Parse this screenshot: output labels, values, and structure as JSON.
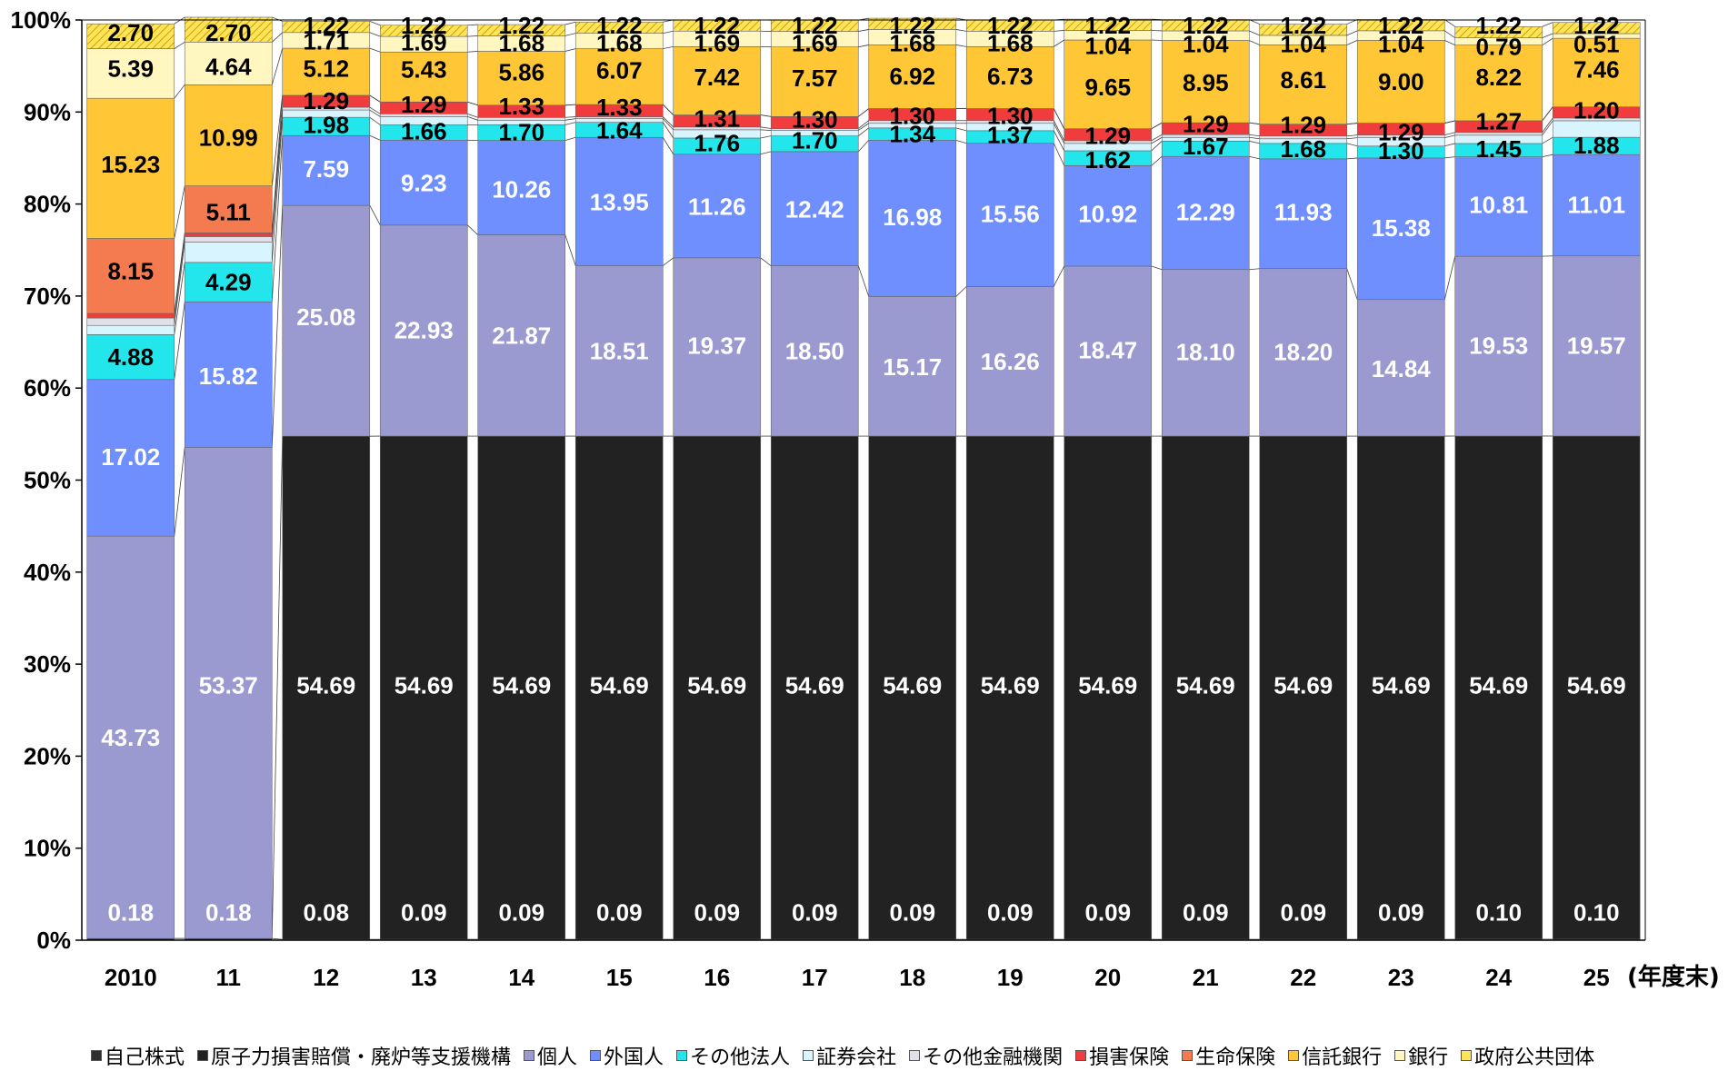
{
  "chart_data": {
    "type": "bar",
    "stacked": true,
    "ylim": [
      0,
      100
    ],
    "y_ticks": [
      "0%",
      "10%",
      "20%",
      "30%",
      "40%",
      "50%",
      "60%",
      "70%",
      "80%",
      "90%",
      "100%"
    ],
    "unit_label": "(年度末)",
    "grid": false,
    "legend_position": "bottom",
    "categories": [
      "2010",
      "11",
      "12",
      "13",
      "14",
      "15",
      "16",
      "17",
      "18",
      "19",
      "20",
      "21",
      "22",
      "23",
      "24",
      "25"
    ],
    "series": [
      {
        "name": "自己株式",
        "color": "#2e2e2e",
        "label_color": "#ffffff",
        "values": [
          0.18,
          0.18,
          0.08,
          0.09,
          0.09,
          0.09,
          0.09,
          0.09,
          0.09,
          0.09,
          0.09,
          0.09,
          0.09,
          0.09,
          0.1,
          0.1
        ],
        "labels": [
          "0.18",
          "0.18",
          "0.08",
          "0.09",
          "0.09",
          "0.09",
          "0.09",
          "0.09",
          "0.09",
          "0.09",
          "0.09",
          "0.09",
          "0.09",
          "0.09",
          "0.10",
          "0.10"
        ],
        "label_positions": [
          3,
          3,
          3,
          3,
          3,
          3,
          3,
          3,
          3,
          3,
          3,
          3,
          3,
          3,
          3,
          3
        ]
      },
      {
        "name": "原子力損害賠償・廃炉等支援機構",
        "color": "#222222",
        "label_color": "#ffffff",
        "values": [
          0,
          0,
          54.69,
          54.69,
          54.69,
          54.69,
          54.69,
          54.69,
          54.69,
          54.69,
          54.69,
          54.69,
          54.69,
          54.69,
          54.69,
          54.69
        ],
        "labels": [
          "",
          "",
          "54.69",
          "54.69",
          "54.69",
          "54.69",
          "54.69",
          "54.69",
          "54.69",
          "54.69",
          "54.69",
          "54.69",
          "54.69",
          "54.69",
          "54.69",
          "54.69"
        ],
        "label_positions": [
          null,
          null,
          27.7,
          27.7,
          27.7,
          27.7,
          27.7,
          27.7,
          27.7,
          27.7,
          27.7,
          27.7,
          27.7,
          27.7,
          27.7,
          27.7
        ]
      },
      {
        "name": "個人",
        "color": "#9a9ad0",
        "label_color": "#ffffff",
        "values": [
          43.73,
          53.37,
          25.08,
          22.93,
          21.87,
          18.51,
          19.37,
          18.5,
          15.17,
          16.26,
          18.47,
          18.1,
          18.2,
          14.84,
          19.53,
          19.57
        ],
        "labels": [
          "43.73",
          "53.37",
          "25.08",
          "22.93",
          "21.87",
          "18.51",
          "19.37",
          "18.50",
          "15.17",
          "16.26",
          "18.47",
          "18.10",
          "18.20",
          "14.84",
          "19.53",
          "19.57"
        ],
        "label_positions": [
          22,
          27.7,
          67.7,
          66.3,
          65.7,
          64,
          64.6,
          64,
          62.3,
          62.9,
          64.1,
          63.9,
          63.9,
          62.1,
          64.6,
          64.6
        ]
      },
      {
        "name": "外国人",
        "color": "#6f8fff",
        "label_color": "#ffffff",
        "values": [
          17.02,
          15.82,
          7.59,
          9.23,
          10.26,
          13.95,
          11.26,
          12.42,
          16.98,
          15.56,
          10.92,
          12.29,
          11.93,
          15.38,
          10.81,
          11.01
        ],
        "labels": [
          "17.02",
          "15.82",
          "7.59",
          "9.23",
          "10.26",
          "13.95",
          "11.26",
          "12.42",
          "16.98",
          "15.56",
          "10.92",
          "12.29",
          "11.93",
          "15.38",
          "10.81",
          "11.01"
        ],
        "label_positions": [
          52.5,
          61.3,
          83.8,
          82.3,
          81.6,
          80.2,
          79.7,
          79.4,
          78.6,
          78.9,
          78.9,
          79.1,
          79.1,
          77.4,
          79.9,
          79.9
        ]
      },
      {
        "name": "その他法人",
        "color": "#22e6ec",
        "label_color": "#000000",
        "values": [
          4.88,
          4.29,
          1.98,
          1.66,
          1.7,
          1.64,
          1.76,
          1.7,
          1.34,
          1.37,
          1.62,
          1.67,
          1.68,
          1.3,
          1.45,
          1.88
        ],
        "labels": [
          "4.88",
          "4.29",
          "1.98",
          "1.66",
          "1.70",
          "1.64",
          "1.76",
          "1.70",
          "1.34",
          "1.37",
          "1.62",
          "1.67",
          "1.68",
          "1.30",
          "1.45",
          "1.88"
        ],
        "label_positions": [
          63.4,
          71.5,
          88.6,
          87.9,
          87.8,
          88,
          86.6,
          86.9,
          87.6,
          87.5,
          84.8,
          86.3,
          86,
          85.8,
          86,
          86.4
        ]
      },
      {
        "name": "証券会社",
        "color": "#d8f4ff",
        "label_color": "#000000",
        "values": [
          1.0,
          2.2,
          0.8,
          0.9,
          0.5,
          0.4,
          0.9,
          0.6,
          0.5,
          0.8,
          0.8,
          0.4,
          0.5,
          0.9,
          0.9,
          1.8
        ],
        "labels": [
          "",
          "",
          "",
          "",
          "",
          "",
          "",
          "",
          "",
          "",
          "",
          "",
          "",
          "",
          "",
          ""
        ],
        "label_positions": [
          null,
          null,
          null,
          null,
          null,
          null,
          null,
          null,
          null,
          null,
          null,
          null,
          null,
          null,
          null,
          null
        ]
      },
      {
        "name": "その他金融機関",
        "color": "#e0e0e8",
        "label_color": "#000000",
        "values": [
          0.8,
          0.6,
          0.3,
          0.3,
          0.3,
          0.2,
          0.3,
          0.2,
          0.3,
          0.3,
          0.3,
          0.3,
          0.3,
          0.3,
          0.3,
          0.3
        ],
        "labels": [
          "",
          "",
          "",
          "",
          "",
          "",
          "",
          "",
          "",
          "",
          "",
          "",
          "",
          "",
          "",
          ""
        ],
        "label_positions": [
          null,
          null,
          null,
          null,
          null,
          null,
          null,
          null,
          null,
          null,
          null,
          null,
          null,
          null,
          null,
          null
        ]
      },
      {
        "name": "損害保険",
        "color": "#f03c3c",
        "label_color": "#000000",
        "values": [
          0.5,
          0.4,
          1.29,
          1.29,
          1.33,
          1.33,
          1.31,
          1.3,
          1.3,
          1.3,
          1.29,
          1.29,
          1.29,
          1.29,
          1.27,
          1.2
        ],
        "labels": [
          "",
          "",
          "1.29",
          "1.29",
          "1.33",
          "1.33",
          "1.31",
          "1.30",
          "1.30",
          "1.30",
          "1.29",
          "1.29",
          "1.29",
          "1.29",
          "1.27",
          "1.20"
        ],
        "label_positions": [
          null,
          null,
          91.2,
          90.8,
          90.6,
          90.5,
          89.3,
          89.2,
          89.6,
          89.6,
          87.4,
          88.7,
          88.6,
          87.8,
          89,
          90.2
        ]
      },
      {
        "name": "生命保険",
        "color": "#f37b4f",
        "label_color": "#000000",
        "values": [
          8.15,
          5.11,
          0,
          0,
          0,
          0,
          0,
          0,
          0,
          0,
          0,
          0,
          0,
          0,
          0,
          0
        ],
        "labels": [
          "8.15",
          "5.11",
          "",
          "",
          "",
          "",
          "",
          "",
          "",
          "",
          "",
          "",
          "",
          "",
          "",
          ""
        ],
        "label_positions": [
          72.7,
          79.1,
          null,
          null,
          null,
          null,
          null,
          null,
          null,
          null,
          null,
          null,
          null,
          null,
          null,
          null
        ]
      },
      {
        "name": "信託銀行",
        "color": "#ffc636",
        "label_color": "#000000",
        "values": [
          15.23,
          10.99,
          5.12,
          5.43,
          5.86,
          6.07,
          7.42,
          7.57,
          6.92,
          6.73,
          9.65,
          8.95,
          8.61,
          9.0,
          8.22,
          7.46
        ],
        "labels": [
          "15.23",
          "10.99",
          "5.12",
          "5.43",
          "5.86",
          "6.07",
          "7.42",
          "7.57",
          "6.92",
          "6.73",
          "9.65",
          "8.95",
          "8.61",
          "9.00",
          "8.22",
          "7.46"
        ],
        "label_positions": [
          84.3,
          87.2,
          94.7,
          94.6,
          94.3,
          94.5,
          93.8,
          93.7,
          93.9,
          93.9,
          92.7,
          93.2,
          93.5,
          93.3,
          93.8,
          94.6
        ]
      },
      {
        "name": "銀行",
        "color": "#fff6c0",
        "label_color": "#000000",
        "values": [
          5.39,
          4.64,
          1.71,
          1.69,
          1.68,
          1.68,
          1.69,
          1.69,
          1.68,
          1.68,
          1.04,
          1.04,
          1.04,
          1.04,
          0.79,
          0.51
        ],
        "labels": [
          "5.39",
          "4.64",
          "1.71",
          "1.69",
          "1.68",
          "1.68",
          "1.69",
          "1.69",
          "1.68",
          "1.68",
          "1.04",
          "1.04",
          "1.04",
          "1.04",
          "0.79",
          "0.51"
        ],
        "label_positions": [
          94.7,
          94.9,
          97.7,
          97.6,
          97.5,
          97.5,
          97.5,
          97.5,
          97.5,
          97.5,
          97.2,
          97.4,
          97.4,
          97.4,
          97.1,
          97.4
        ]
      },
      {
        "name": "政府公共団体",
        "color": "#ffe35a",
        "label_color": "#000000",
        "values": [
          2.7,
          2.7,
          1.22,
          1.22,
          1.22,
          1.22,
          1.22,
          1.22,
          1.22,
          1.22,
          1.22,
          1.22,
          1.22,
          1.22,
          1.22,
          1.22
        ],
        "labels": [
          "2.70",
          "2.70",
          "1.22",
          "1.22",
          "1.22",
          "1.22",
          "1.22",
          "1.22",
          "1.22",
          "1.22",
          "1.22",
          "1.22",
          "1.22",
          "1.22",
          "1.22",
          "1.22"
        ],
        "label_positions": [
          98.6,
          98.6,
          99.4,
          99.4,
          99.4,
          99.4,
          99.4,
          99.4,
          99.4,
          99.4,
          99.4,
          99.4,
          99.4,
          99.4,
          99.4,
          99.4
        ]
      }
    ]
  }
}
